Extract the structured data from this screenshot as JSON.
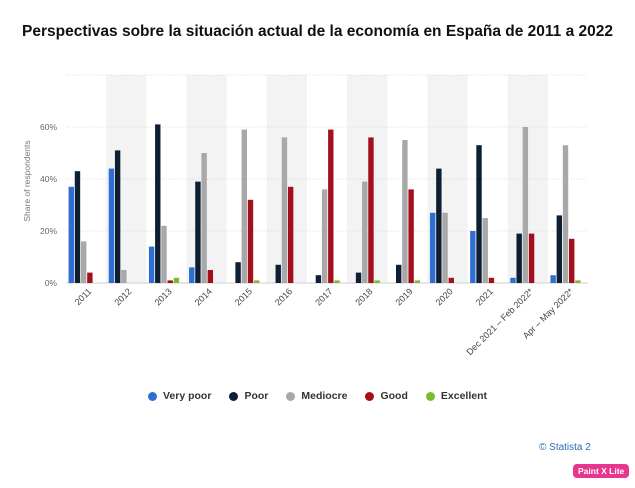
{
  "page_title": "Perspectivas sobre la situación actual de la economía en España de 2011 a 2022",
  "credit": "© Statista 2",
  "badge": "Paint X Lite",
  "chart_data": {
    "type": "bar",
    "title": "Perspectivas sobre la situación actual de la economía en España de 2011 a 2022",
    "xlabel": "",
    "ylabel": "Share of respondents",
    "ylim": [
      0,
      80
    ],
    "yticks": [
      0,
      20,
      40,
      60
    ],
    "ytick_labels": [
      "0%",
      "20%",
      "40%",
      "60%"
    ],
    "grid": true,
    "legend_position": "bottom",
    "categories": [
      "2011",
      "2012",
      "2013",
      "2014",
      "2015",
      "2016",
      "2017",
      "2018",
      "2019",
      "2020",
      "2021",
      "Dec 2021 – Feb 2022*",
      "Apr – May 2022*"
    ],
    "series": [
      {
        "name": "Very poor",
        "color": "#2e6fd1",
        "values": [
          37,
          44,
          14,
          6,
          0,
          0,
          0,
          0,
          0,
          27,
          20,
          2,
          3
        ]
      },
      {
        "name": "Poor",
        "color": "#0f1f33",
        "values": [
          43,
          51,
          61,
          39,
          8,
          7,
          3,
          4,
          7,
          44,
          53,
          19,
          26
        ]
      },
      {
        "name": "Mediocre",
        "color": "#a8a8a8",
        "values": [
          16,
          5,
          22,
          50,
          59,
          56,
          36,
          39,
          55,
          27,
          25,
          60,
          53
        ]
      },
      {
        "name": "Good",
        "color": "#a3101c",
        "values": [
          4,
          0,
          1,
          5,
          32,
          37,
          59,
          56,
          36,
          2,
          2,
          19,
          17
        ]
      },
      {
        "name": "Excellent",
        "color": "#7dba2f",
        "values": [
          0,
          0,
          2,
          0,
          1,
          0,
          1,
          1,
          1,
          0,
          0,
          0,
          1
        ]
      }
    ]
  }
}
